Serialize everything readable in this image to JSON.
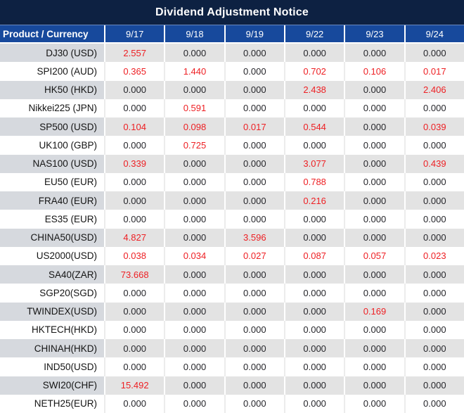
{
  "title": "Dividend Adjustment Notice",
  "colors": {
    "title_bar_bg": "#0d2142",
    "header_bg": "#17499c",
    "band_product_bg": "#d6d9de",
    "band_value_bg": "#e3e3e3",
    "zero_text": "#26262b",
    "nonzero_text": "#ee2024"
  },
  "table": {
    "corner_header": "Product / Currency",
    "date_headers": [
      "9/17",
      "9/18",
      "9/19",
      "9/22",
      "9/23",
      "9/24"
    ],
    "zero_value": "0.000",
    "rows": [
      {
        "product": "DJ30 (USD)",
        "values": [
          "2.557",
          "0.000",
          "0.000",
          "0.000",
          "0.000",
          "0.000"
        ]
      },
      {
        "product": "SPI200 (AUD)",
        "values": [
          "0.365",
          "1.440",
          "0.000",
          "0.702",
          "0.106",
          "0.017"
        ]
      },
      {
        "product": "HK50 (HKD)",
        "values": [
          "0.000",
          "0.000",
          "0.000",
          "2.438",
          "0.000",
          "2.406"
        ]
      },
      {
        "product": "Nikkei225 (JPN)",
        "values": [
          "0.000",
          "0.591",
          "0.000",
          "0.000",
          "0.000",
          "0.000"
        ]
      },
      {
        "product": "SP500 (USD)",
        "values": [
          "0.104",
          "0.098",
          "0.017",
          "0.544",
          "0.000",
          "0.039"
        ]
      },
      {
        "product": "UK100 (GBP)",
        "values": [
          "0.000",
          "0.725",
          "0.000",
          "0.000",
          "0.000",
          "0.000"
        ]
      },
      {
        "product": "NAS100 (USD)",
        "values": [
          "0.339",
          "0.000",
          "0.000",
          "3.077",
          "0.000",
          "0.439"
        ]
      },
      {
        "product": "EU50 (EUR)",
        "values": [
          "0.000",
          "0.000",
          "0.000",
          "0.788",
          "0.000",
          "0.000"
        ]
      },
      {
        "product": "FRA40 (EUR)",
        "values": [
          "0.000",
          "0.000",
          "0.000",
          "0.216",
          "0.000",
          "0.000"
        ]
      },
      {
        "product": "ES35 (EUR)",
        "values": [
          "0.000",
          "0.000",
          "0.000",
          "0.000",
          "0.000",
          "0.000"
        ]
      },
      {
        "product": "CHINA50(USD)",
        "values": [
          "4.827",
          "0.000",
          "3.596",
          "0.000",
          "0.000",
          "0.000"
        ]
      },
      {
        "product": "US2000(USD)",
        "values": [
          "0.038",
          "0.034",
          "0.027",
          "0.087",
          "0.057",
          "0.023"
        ]
      },
      {
        "product": "SA40(ZAR)",
        "values": [
          "73.668",
          "0.000",
          "0.000",
          "0.000",
          "0.000",
          "0.000"
        ]
      },
      {
        "product": "SGP20(SGD)",
        "values": [
          "0.000",
          "0.000",
          "0.000",
          "0.000",
          "0.000",
          "0.000"
        ]
      },
      {
        "product": "TWINDEX(USD)",
        "values": [
          "0.000",
          "0.000",
          "0.000",
          "0.000",
          "0.169",
          "0.000"
        ]
      },
      {
        "product": "HKTECH(HKD)",
        "values": [
          "0.000",
          "0.000",
          "0.000",
          "0.000",
          "0.000",
          "0.000"
        ]
      },
      {
        "product": "CHINAH(HKD)",
        "values": [
          "0.000",
          "0.000",
          "0.000",
          "0.000",
          "0.000",
          "0.000"
        ]
      },
      {
        "product": "IND50(USD)",
        "values": [
          "0.000",
          "0.000",
          "0.000",
          "0.000",
          "0.000",
          "0.000"
        ]
      },
      {
        "product": "SWI20(CHF)",
        "values": [
          "15.492",
          "0.000",
          "0.000",
          "0.000",
          "0.000",
          "0.000"
        ]
      },
      {
        "product": "NETH25(EUR)",
        "values": [
          "0.000",
          "0.000",
          "0.000",
          "0.000",
          "0.000",
          "0.000"
        ]
      }
    ]
  }
}
